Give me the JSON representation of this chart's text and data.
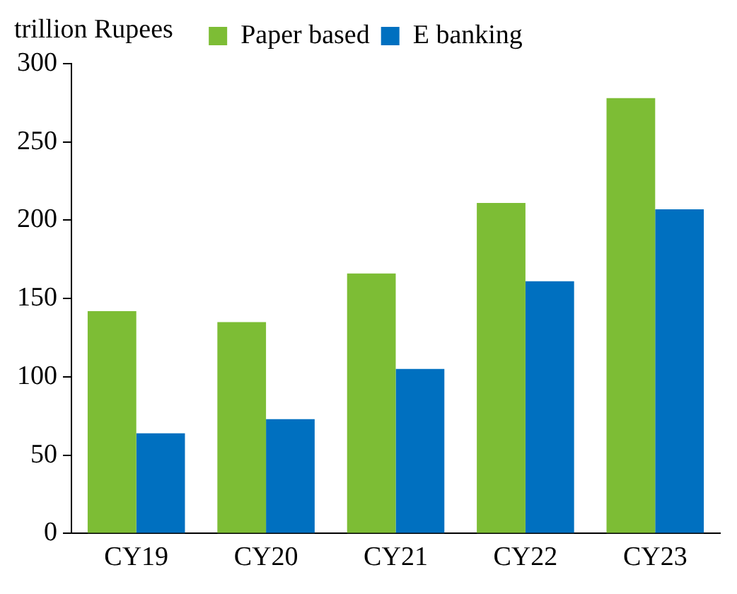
{
  "chart_data": {
    "type": "bar",
    "ylabel": "trillion Rupees",
    "categories": [
      "CY19",
      "CY20",
      "CY21",
      "CY22",
      "CY23"
    ],
    "series": [
      {
        "name": "Paper based",
        "color": "#7dbd35",
        "values": [
          142,
          135,
          166,
          211,
          278
        ]
      },
      {
        "name": "E banking",
        "color": "#0070c0",
        "values": [
          64,
          73,
          105,
          161,
          207
        ]
      }
    ],
    "ylim": [
      0,
      300
    ],
    "yticks": [
      0,
      50,
      100,
      150,
      200,
      250,
      300
    ],
    "grid": false,
    "legend": "top"
  }
}
